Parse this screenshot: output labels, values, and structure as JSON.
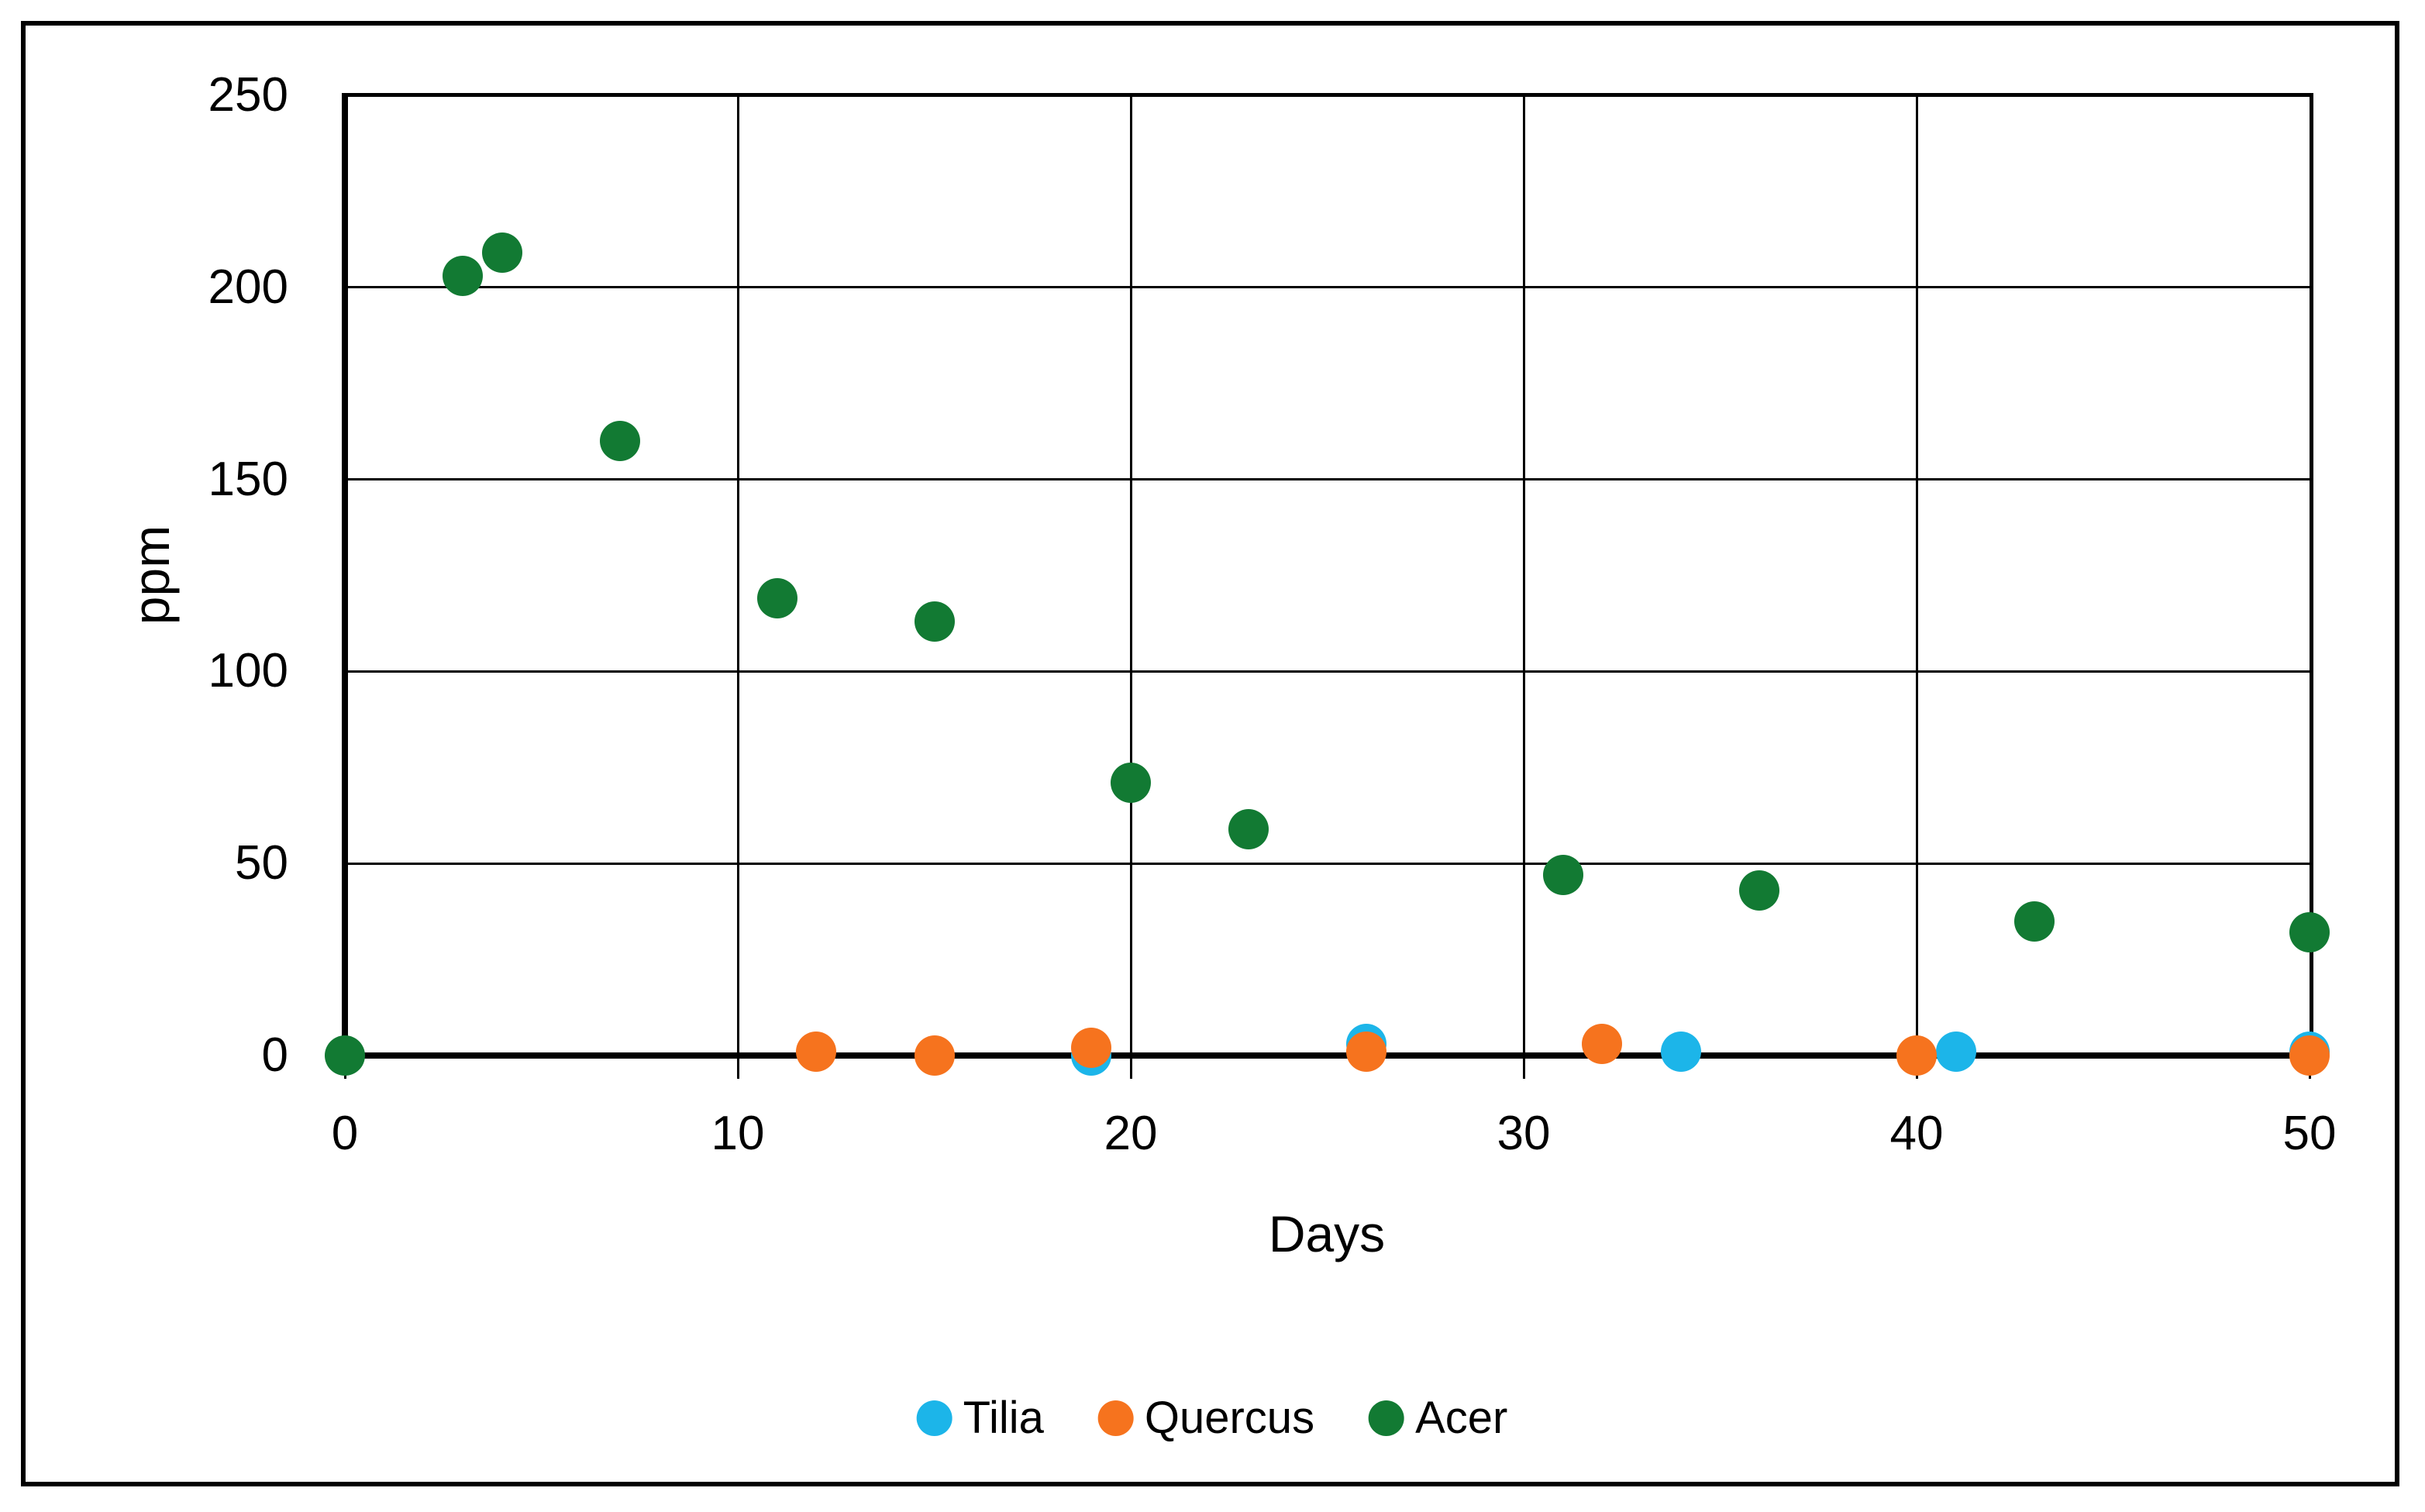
{
  "chart_data": {
    "type": "scatter",
    "title": "",
    "xlabel": "Days",
    "ylabel": "ppm",
    "xlim": [
      0,
      50
    ],
    "ylim": [
      0,
      250
    ],
    "xticks": [
      0,
      10,
      20,
      30,
      40,
      50
    ],
    "yticks": [
      0,
      50,
      100,
      150,
      200,
      250
    ],
    "grid": true,
    "legend_position": "bottom",
    "series": [
      {
        "name": "Tilia",
        "color": "#1CB5E9",
        "points": [
          [
            19,
            0
          ],
          [
            26,
            3
          ],
          [
            34,
            1
          ],
          [
            41,
            1
          ],
          [
            50,
            1
          ]
        ]
      },
      {
        "name": "Quercus",
        "color": "#F6731E",
        "points": [
          [
            12,
            1
          ],
          [
            15,
            0
          ],
          [
            19,
            2
          ],
          [
            26,
            1
          ],
          [
            32,
            3
          ],
          [
            40,
            0
          ],
          [
            50,
            0
          ]
        ]
      },
      {
        "name": "Acer",
        "color": "#127A33",
        "points": [
          [
            0,
            0
          ],
          [
            3,
            203
          ],
          [
            4,
            209
          ],
          [
            7,
            160
          ],
          [
            11,
            119
          ],
          [
            15,
            113
          ],
          [
            20,
            71
          ],
          [
            23,
            59
          ],
          [
            31,
            47
          ],
          [
            36,
            43
          ],
          [
            43,
            35
          ],
          [
            50,
            32
          ]
        ]
      }
    ]
  }
}
